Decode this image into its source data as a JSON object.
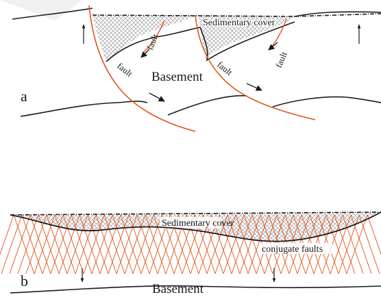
{
  "panel_a": {
    "panel_letter": "a",
    "sedimentary_cover_label": "Sedimentary cover",
    "basement_label": "Basement",
    "fault_labels": [
      "fault",
      "fault",
      "fault",
      "fault"
    ]
  },
  "panel_b": {
    "panel_letter": "b",
    "sedimentary_cover_label": "Sedimentary cover",
    "conjugate_faults_label": "conjugate faults",
    "basement_label": "Basement"
  },
  "colors": {
    "fault": "#e0541c",
    "line": "#1a1a1a",
    "hatch": "#777777"
  }
}
